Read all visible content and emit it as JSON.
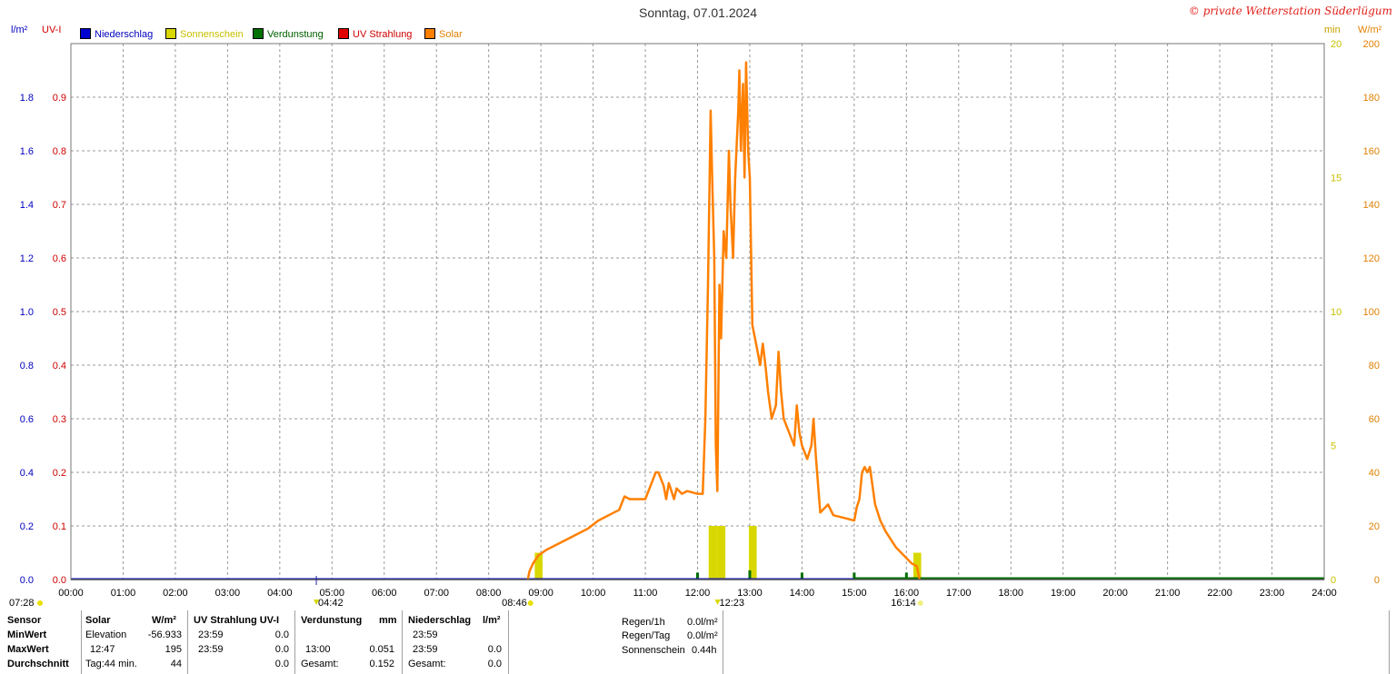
{
  "title": "Sonntag, 07.01.2024",
  "copyright": "© private Wetterstation Süderlügum",
  "axes": {
    "left_unit_1": "l/m²",
    "left_unit_2": "UV-I",
    "right_unit_1": "min",
    "right_unit_2": "W/m²",
    "left1_ticks": [
      "0.0",
      "0.2",
      "0.4",
      "0.6",
      "0.8",
      "1.0",
      "1.2",
      "1.4",
      "1.6",
      "1.8"
    ],
    "left2_ticks": [
      "0.0",
      "0.1",
      "0.2",
      "0.3",
      "0.4",
      "0.5",
      "0.6",
      "0.7",
      "0.8",
      "0.9"
    ],
    "right1_ticks": [
      "0",
      "5",
      "10",
      "15",
      "20"
    ],
    "right2_ticks": [
      "0",
      "20",
      "40",
      "60",
      "80",
      "100",
      "120",
      "140",
      "160",
      "180",
      "200"
    ],
    "x_ticks": [
      "00:00",
      "01:00",
      "02:00",
      "03:00",
      "04:00",
      "05:00",
      "06:00",
      "07:00",
      "08:00",
      "09:00",
      "10:00",
      "11:00",
      "12:00",
      "13:00",
      "14:00",
      "15:00",
      "16:00",
      "17:00",
      "18:00",
      "19:00",
      "20:00",
      "21:00",
      "22:00",
      "23:00",
      "24:00"
    ]
  },
  "legend": [
    {
      "label": "Niederschlag",
      "color": "#0000d0"
    },
    {
      "label": "Sonnenschein",
      "color": "#d8d800"
    },
    {
      "label": "Verdunstung",
      "color": "#007000"
    },
    {
      "label": "UV Strahlung",
      "color": "#e00000"
    },
    {
      "label": "Solar",
      "color": "#ff8000"
    }
  ],
  "markers": {
    "sunrise_astro": "07:28",
    "moonrise": "04:42",
    "sunrise": "08:46",
    "noon": "12:23",
    "sunset": "16:14"
  },
  "chart_data": {
    "type": "line",
    "title": "Sonntag, 07.01.2024",
    "x_unit": "hours",
    "xlim": [
      0,
      24
    ],
    "ylim_solar": [
      0,
      200
    ],
    "ylim_sunshine": [
      0,
      20
    ],
    "ylim_precip": [
      0,
      2.0
    ],
    "ylim_uv": [
      0,
      1.0
    ],
    "grid": true,
    "legend_position": "top-left",
    "series": [
      {
        "name": "Solar",
        "color": "#ff8000",
        "unit": "W/m²",
        "points": [
          [
            8.75,
            0
          ],
          [
            8.78,
            3
          ],
          [
            8.85,
            6
          ],
          [
            8.95,
            9
          ],
          [
            9.1,
            11
          ],
          [
            9.3,
            13
          ],
          [
            9.5,
            15
          ],
          [
            9.7,
            17
          ],
          [
            9.9,
            19
          ],
          [
            10.1,
            22
          ],
          [
            10.3,
            24
          ],
          [
            10.5,
            26
          ],
          [
            10.6,
            31
          ],
          [
            10.7,
            30
          ],
          [
            10.8,
            30
          ],
          [
            11.0,
            30
          ],
          [
            11.1,
            35
          ],
          [
            11.2,
            40
          ],
          [
            11.25,
            40
          ],
          [
            11.35,
            35
          ],
          [
            11.4,
            30
          ],
          [
            11.45,
            36
          ],
          [
            11.5,
            33
          ],
          [
            11.55,
            30
          ],
          [
            11.6,
            34
          ],
          [
            11.7,
            32
          ],
          [
            11.8,
            33
          ],
          [
            12.0,
            32
          ],
          [
            12.1,
            32
          ],
          [
            12.15,
            60
          ],
          [
            12.2,
            110
          ],
          [
            12.25,
            175
          ],
          [
            12.28,
            150
          ],
          [
            12.32,
            120
          ],
          [
            12.35,
            50
          ],
          [
            12.38,
            33
          ],
          [
            12.42,
            110
          ],
          [
            12.45,
            90
          ],
          [
            12.5,
            130
          ],
          [
            12.55,
            120
          ],
          [
            12.6,
            160
          ],
          [
            12.63,
            140
          ],
          [
            12.68,
            120
          ],
          [
            12.72,
            150
          ],
          [
            12.78,
            175
          ],
          [
            12.8,
            190
          ],
          [
            12.83,
            160
          ],
          [
            12.87,
            185
          ],
          [
            12.9,
            150
          ],
          [
            12.93,
            193
          ],
          [
            12.97,
            160
          ],
          [
            13.0,
            150
          ],
          [
            13.05,
            95
          ],
          [
            13.1,
            90
          ],
          [
            13.15,
            85
          ],
          [
            13.2,
            80
          ],
          [
            13.25,
            88
          ],
          [
            13.3,
            80
          ],
          [
            13.35,
            70
          ],
          [
            13.42,
            60
          ],
          [
            13.5,
            65
          ],
          [
            13.55,
            85
          ],
          [
            13.6,
            70
          ],
          [
            13.65,
            60
          ],
          [
            13.75,
            55
          ],
          [
            13.85,
            50
          ],
          [
            13.9,
            65
          ],
          [
            13.95,
            55
          ],
          [
            14.0,
            50
          ],
          [
            14.1,
            45
          ],
          [
            14.18,
            50
          ],
          [
            14.22,
            60
          ],
          [
            14.27,
            45
          ],
          [
            14.35,
            25
          ],
          [
            14.5,
            28
          ],
          [
            14.6,
            24
          ],
          [
            14.8,
            23
          ],
          [
            15.0,
            22
          ],
          [
            15.05,
            27
          ],
          [
            15.1,
            30
          ],
          [
            15.15,
            40
          ],
          [
            15.2,
            42
          ],
          [
            15.25,
            40
          ],
          [
            15.3,
            42
          ],
          [
            15.35,
            35
          ],
          [
            15.4,
            28
          ],
          [
            15.5,
            22
          ],
          [
            15.6,
            18
          ],
          [
            15.7,
            15
          ],
          [
            15.8,
            12
          ],
          [
            15.9,
            10
          ],
          [
            16.0,
            8
          ],
          [
            16.1,
            6
          ],
          [
            16.2,
            5
          ],
          [
            16.25,
            0
          ]
        ]
      },
      {
        "name": "Sonnenschein",
        "color": "#d8d800",
        "unit": "min",
        "points": [
          [
            8.9,
            1
          ],
          [
            12.23,
            2
          ],
          [
            12.38,
            2
          ],
          [
            12.4,
            2
          ],
          [
            13.0,
            2
          ],
          [
            16.15,
            1
          ]
        ]
      },
      {
        "name": "Verdunstung",
        "color": "#007000",
        "unit": "mm",
        "points": [
          [
            12.0,
            0.03
          ],
          [
            13.0,
            0.051
          ],
          [
            14.0,
            0.03
          ],
          [
            15.0,
            0.03
          ],
          [
            16.0,
            0.03
          ]
        ]
      },
      {
        "name": "Niederschlag",
        "color": "#0000d0",
        "unit": "l/m²",
        "points": [
          [
            0,
            0
          ],
          [
            24,
            0
          ]
        ]
      },
      {
        "name": "UV Strahlung",
        "color": "#e00000",
        "unit": "UV-I",
        "points": [
          [
            0,
            0
          ],
          [
            24,
            0
          ]
        ]
      }
    ]
  },
  "stats": {
    "header": {
      "sensor": "Sensor",
      "solar": "Solar",
      "solar_unit": "W/m²",
      "uv": "UV Strahlung UV-I",
      "evap": "Verdunstung",
      "evap_unit": "mm",
      "precip": "Niederschlag",
      "precip_unit": "l/m²"
    },
    "rows": [
      {
        "label": "MinWert",
        "solar_time": "Elevation",
        "solar_val": "-56.933",
        "uv_time": "23:59",
        "uv_val": "0.0",
        "evap_time": "",
        "evap_val": "",
        "precip_time": "23:59",
        "precip_val": ""
      },
      {
        "label": "MaxWert",
        "solar_time": "12:47",
        "solar_val": "195",
        "uv_time": "23:59",
        "uv_val": "0.0",
        "evap_time": "13:00",
        "evap_val": "0.051",
        "precip_time": "23:59",
        "precip_val": "0.0"
      },
      {
        "label": "Durchschnitt",
        "solar_time": "Tag:44 min.",
        "solar_val": "44",
        "uv_time": "",
        "uv_val": "0.0",
        "evap_time": "Gesamt:",
        "evap_val": "0.152",
        "precip_time": "Gesamt:",
        "precip_val": "0.0"
      }
    ],
    "summary": [
      {
        "label": "Regen/1h",
        "value": "0.0l/m²"
      },
      {
        "label": "Regen/Tag",
        "value": "0.0l/m²"
      },
      {
        "label": "Sonnenschein",
        "value": "0.44h"
      }
    ]
  }
}
